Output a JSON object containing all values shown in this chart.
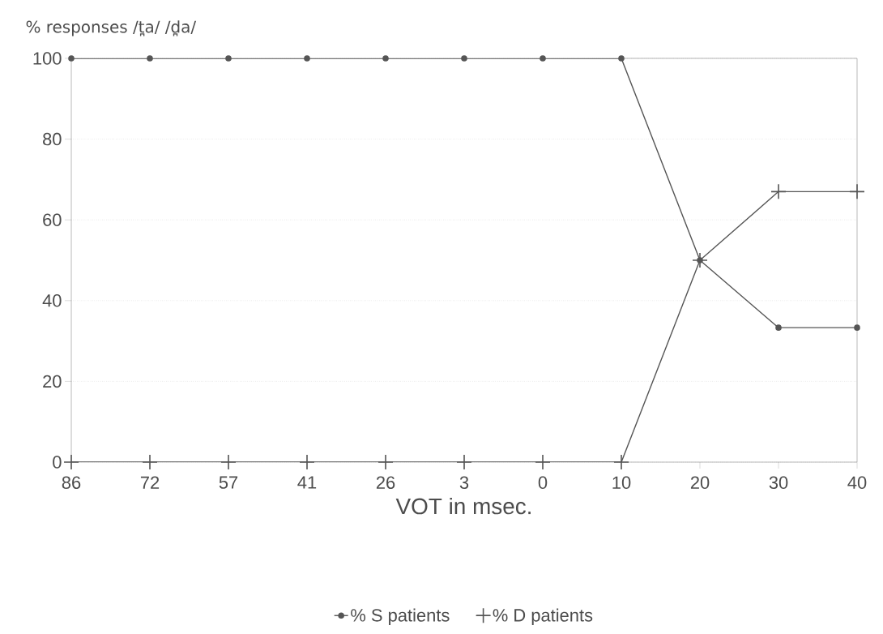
{
  "chart_data": {
    "type": "line",
    "ylabel": "% responses /t̪a/ /d̪a/",
    "xlabel": "VOT in msec.",
    "categories": [
      "86",
      "72",
      "57",
      "41",
      "26",
      "3",
      "0",
      "10",
      "20",
      "30",
      "40"
    ],
    "series": [
      {
        "name": "% S patients",
        "color": "#555555",
        "marker": "circle",
        "values": [
          100,
          100,
          100,
          100,
          100,
          100,
          100,
          100,
          50,
          33.3,
          33.3
        ]
      },
      {
        "name": "% D patients",
        "color": "#555555",
        "marker": "cross",
        "values": [
          0,
          0,
          0,
          0,
          0,
          0,
          0,
          0,
          50,
          67,
          67
        ]
      }
    ],
    "ylim": [
      0,
      100
    ],
    "yticks": [
      0,
      20,
      40,
      60,
      80,
      100
    ],
    "grid": "y",
    "legend": "bottom",
    "line_style": "solid"
  }
}
